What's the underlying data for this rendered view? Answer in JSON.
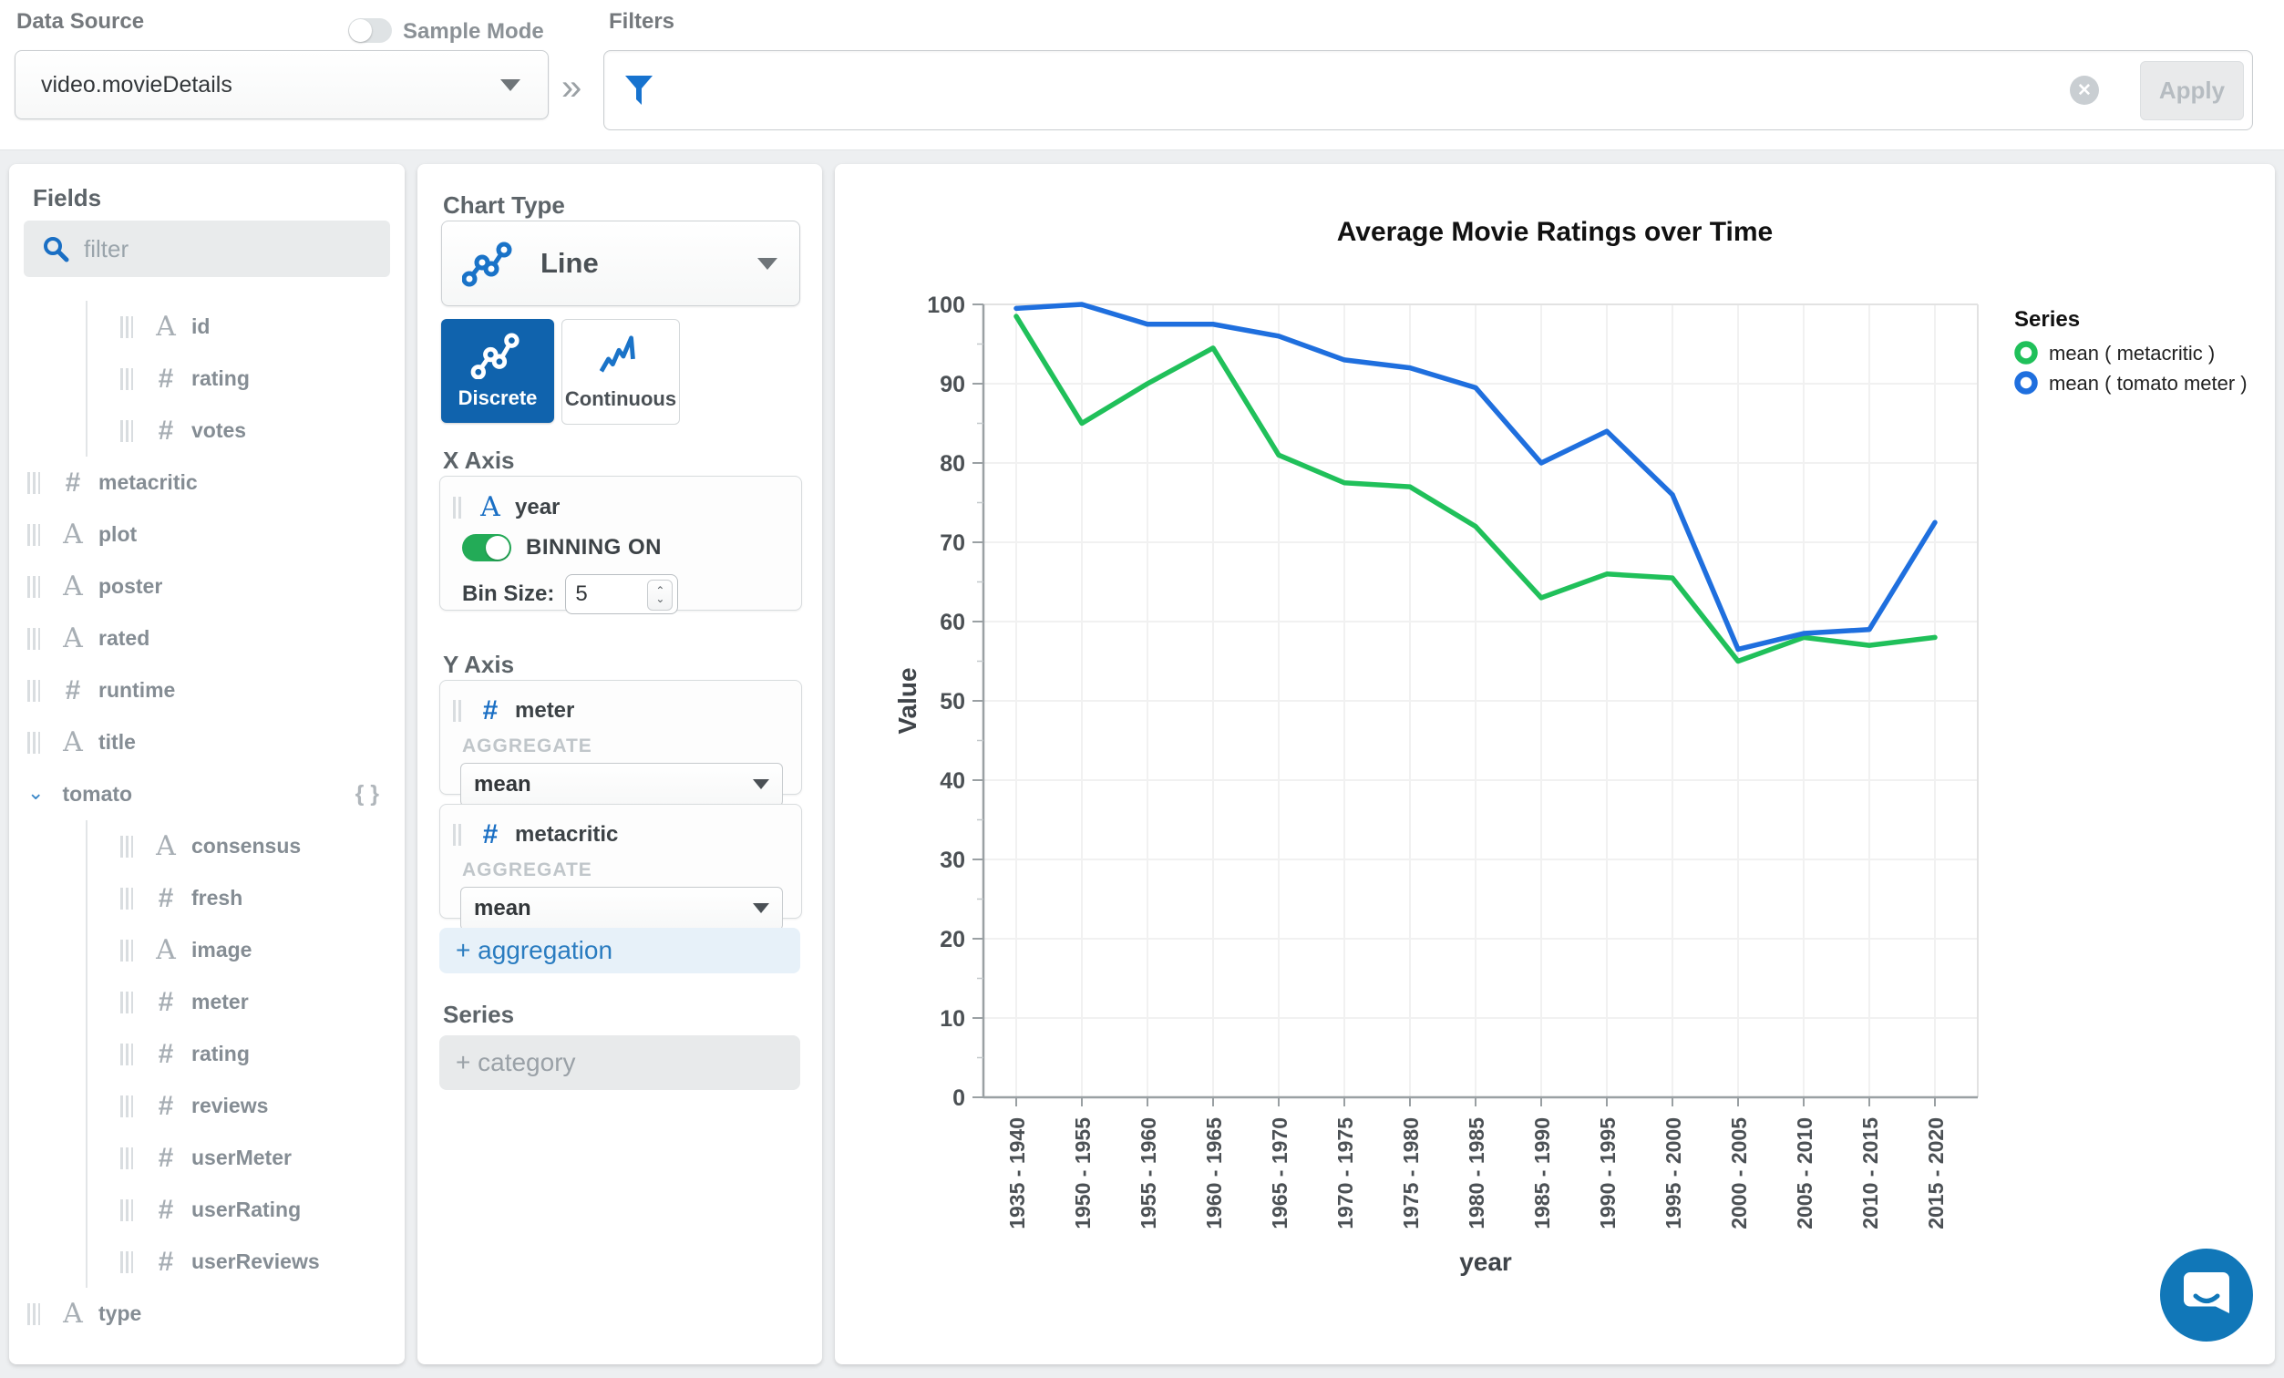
{
  "header": {
    "data_source_label": "Data Source",
    "data_source_value": "video.movieDetails",
    "sample_mode_label": "Sample Mode",
    "sample_mode_on": false,
    "filters_label": "Filters",
    "filter_value": "",
    "apply_label": "Apply",
    "collapse_icon": "»",
    "clear_icon": "✕"
  },
  "fields_panel": {
    "title": "Fields",
    "search_placeholder": "filter",
    "braces_icon": "{ }",
    "expand_icon": "⌄",
    "items": [
      {
        "name": "id",
        "type": "string",
        "indent": 1
      },
      {
        "name": "rating",
        "type": "number",
        "indent": 1
      },
      {
        "name": "votes",
        "type": "number",
        "indent": 1
      },
      {
        "name": "metacritic",
        "type": "number",
        "indent": 0
      },
      {
        "name": "plot",
        "type": "string",
        "indent": 0
      },
      {
        "name": "poster",
        "type": "string",
        "indent": 0
      },
      {
        "name": "rated",
        "type": "string",
        "indent": 0
      },
      {
        "name": "runtime",
        "type": "number",
        "indent": 0
      },
      {
        "name": "title",
        "type": "string",
        "indent": 0
      },
      {
        "name": "tomato",
        "type": "object",
        "indent": 0,
        "expanded": true
      },
      {
        "name": "consensus",
        "type": "string",
        "indent": 1
      },
      {
        "name": "fresh",
        "type": "number",
        "indent": 1
      },
      {
        "name": "image",
        "type": "string",
        "indent": 1
      },
      {
        "name": "meter",
        "type": "number",
        "indent": 1
      },
      {
        "name": "rating",
        "type": "number",
        "indent": 1
      },
      {
        "name": "reviews",
        "type": "number",
        "indent": 1
      },
      {
        "name": "userMeter",
        "type": "number",
        "indent": 1
      },
      {
        "name": "userRating",
        "type": "number",
        "indent": 1
      },
      {
        "name": "userReviews",
        "type": "number",
        "indent": 1
      },
      {
        "name": "type",
        "type": "string",
        "indent": 0
      }
    ]
  },
  "config_panel": {
    "chart_type_label": "Chart Type",
    "chart_type_value": "Line",
    "discrete_label": "Discrete",
    "continuous_label": "Continuous",
    "x_axis": {
      "label": "X Axis",
      "field": "year",
      "field_type": "string",
      "binning_label": "BINNING ON",
      "binning_on": true,
      "bin_size_label": "Bin Size:",
      "bin_size_value": "5"
    },
    "y_axis": {
      "label": "Y Axis",
      "encodings": [
        {
          "field": "meter",
          "field_type": "number",
          "aggregate_label": "AGGREGATE",
          "aggregate": "mean"
        },
        {
          "field": "metacritic",
          "field_type": "number",
          "aggregate_label": "AGGREGATE",
          "aggregate": "mean"
        }
      ],
      "add_label": "+ aggregation"
    },
    "series_label": "Series",
    "series_add_label": "+ category"
  },
  "chart_data": {
    "type": "line",
    "title": "Average Movie Ratings over Time",
    "xlabel": "year",
    "ylabel": "Value",
    "ylim": [
      0,
      100
    ],
    "y_ticks": [
      0,
      10,
      20,
      30,
      40,
      50,
      60,
      70,
      80,
      90,
      100
    ],
    "grid": true,
    "legend_title": "Series",
    "legend_position": "right",
    "categories": [
      "1935 - 1940",
      "1950 - 1955",
      "1955 - 1960",
      "1960 - 1965",
      "1965 - 1970",
      "1970 - 1975",
      "1975 - 1980",
      "1980 - 1985",
      "1985 - 1990",
      "1990 - 1995",
      "1995 - 2000",
      "2000 - 2005",
      "2005 - 2010",
      "2010 - 2015",
      "2015 - 2020"
    ],
    "series": [
      {
        "name": "mean ( metacritic )",
        "color": "#20c05a",
        "values": [
          98.5,
          85,
          90,
          94.5,
          81,
          77.5,
          77,
          72,
          63,
          66,
          65.5,
          55,
          58,
          57,
          58
        ]
      },
      {
        "name": "mean ( tomato meter )",
        "color": "#1f6fde",
        "values": [
          99.5,
          100,
          97.5,
          97.5,
          96,
          93,
          92,
          89.5,
          80,
          84,
          76,
          56.5,
          58.5,
          59,
          72.5
        ]
      }
    ]
  },
  "colors": {
    "discrete_selected_bg": "#1063ad",
    "binning_toggle_on": "#23ab57",
    "funnel_icon": "#1773cf",
    "chart_green": "#20c05a",
    "chart_blue": "#1f6fde",
    "chat_bubble": "#1177b8"
  }
}
